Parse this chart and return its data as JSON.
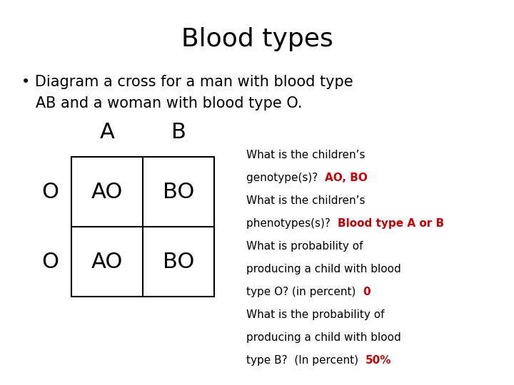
{
  "title": "Blood types",
  "title_fontsize": 26,
  "bullet_line1": "• Diagram a cross for a man with blood type",
  "bullet_line2": "   AB and a woman with blood type O.",
  "bullet_fontsize": 15,
  "grid_col_headers": [
    "A",
    "B"
  ],
  "grid_row_headers": [
    "O",
    "O"
  ],
  "grid_cells": [
    [
      "AO",
      "BO"
    ],
    [
      "AO",
      "BO"
    ]
  ],
  "questions": [
    {
      "text": "What is the children’s",
      "colored": "",
      "color": "#000000"
    },
    {
      "text": "genotype(s)?  ",
      "colored": "AO, BO",
      "color": "#cc0000"
    },
    {
      "text": "What is the children’s",
      "colored": "",
      "color": "#000000"
    },
    {
      "text": "phenotypes(s)?  ",
      "colored": "Blood type A or B",
      "color": "#cc0000"
    },
    {
      "text": "What is probability of",
      "colored": "",
      "color": "#000000"
    },
    {
      "text": "producing a child with blood",
      "colored": "",
      "color": "#000000"
    },
    {
      "text": "type O? (in percent)  ",
      "colored": "0",
      "color": "#cc0000"
    },
    {
      "text": "What is the probability of",
      "colored": "",
      "color": "#000000"
    },
    {
      "text": "producing a child with blood",
      "colored": "",
      "color": "#000000"
    },
    {
      "text": "type B?  (In percent)  ",
      "colored": "50%",
      "color": "#cc0000"
    }
  ],
  "q_fontsize": 11,
  "background_color": "#ffffff",
  "text_color": "#000000",
  "grid_cell_fontsize": 22,
  "header_fontsize": 22
}
